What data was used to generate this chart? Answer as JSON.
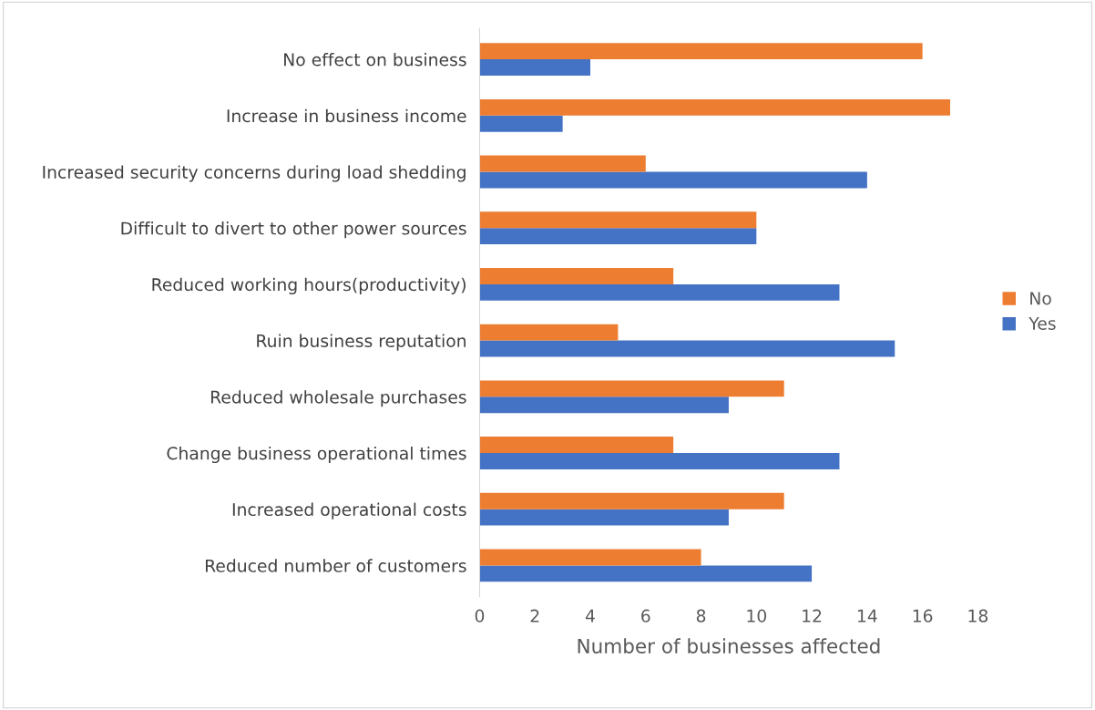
{
  "chart_data": {
    "type": "bar",
    "orientation": "horizontal",
    "xlabel": "Number of businesses affected",
    "categories": [
      "No effect on business",
      "Increase in business income",
      "Increased security concerns during load shedding",
      "Difficult to divert to other power sources",
      "Reduced working hours(productivity)",
      "Ruin business reputation",
      "Reduced wholesale purchases",
      "Change business operational times",
      "Increased operational costs",
      "Reduced number of customers"
    ],
    "series": [
      {
        "name": "Yes",
        "color": "#4472c4",
        "values": [
          4,
          3,
          14,
          10,
          13,
          15,
          9,
          13,
          9,
          12
        ]
      },
      {
        "name": "No",
        "color": "#ed7d31",
        "values": [
          16,
          17,
          6,
          10,
          7,
          5,
          11,
          7,
          11,
          8
        ]
      }
    ],
    "xlim": [
      0,
      18
    ],
    "xticks": [
      0,
      2,
      4,
      6,
      8,
      10,
      12,
      14,
      16,
      18
    ],
    "grid": false,
    "legend": "right"
  }
}
